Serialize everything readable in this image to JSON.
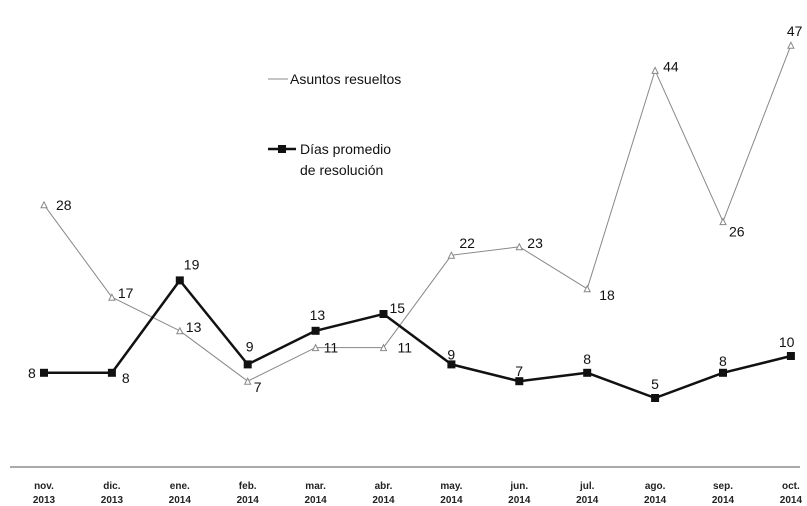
{
  "chart_data": {
    "type": "line",
    "categories": [
      [
        "nov.",
        "2013"
      ],
      [
        "dic.",
        "2013"
      ],
      [
        "ene.",
        "2014"
      ],
      [
        "feb.",
        "2014"
      ],
      [
        "mar.",
        "2014"
      ],
      [
        "abr.",
        "2014"
      ],
      [
        "may.",
        "2014"
      ],
      [
        "jun.",
        "2014"
      ],
      [
        "jul.",
        "2014"
      ],
      [
        "ago.",
        "2014"
      ],
      [
        "sep.",
        "2014"
      ],
      [
        "oct.",
        "2014"
      ]
    ],
    "series": [
      {
        "name": "Asuntos resueltos",
        "values": [
          28,
          17,
          13,
          7,
          11,
          11,
          22,
          23,
          18,
          44,
          26,
          47
        ],
        "color": "#888888",
        "marker": "triangle"
      },
      {
        "name": "Días promedio de resolución",
        "name_lines": [
          "Días promedio",
          "de resolución"
        ],
        "values": [
          8,
          8,
          19,
          9,
          13,
          15,
          9,
          7,
          8,
          5,
          8,
          10
        ],
        "color": "#111111",
        "marker": "square"
      }
    ],
    "ylim": [
      0,
      50
    ],
    "grid": false,
    "legend": "top-center"
  }
}
